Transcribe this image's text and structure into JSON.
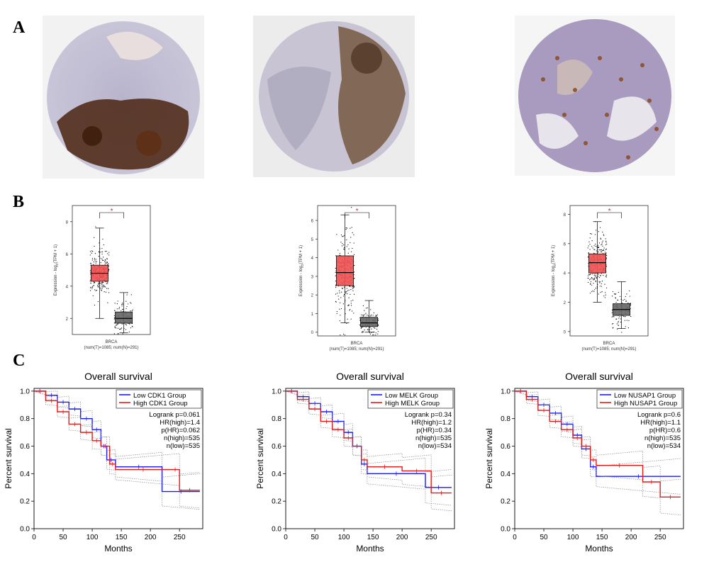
{
  "panel_labels": [
    "A",
    "B",
    "C"
  ],
  "ihc_images": [
    {
      "description_icon": "ihc-tissue-core-strong-stain",
      "stain_color": "#5a2e14",
      "counter_color": "#b7b3cf"
    },
    {
      "description_icon": "ihc-tissue-core-moderate-stain",
      "stain_color": "#6b4a2e",
      "counter_color": "#c6c2d6"
    },
    {
      "description_icon": "ihc-tissue-core-nuclear-stain",
      "stain_color": "#8a4a20",
      "counter_color": "#a99abf"
    }
  ],
  "boxplots": [
    {
      "ylabel_main": "Expression - log",
      "ylabel_sub": "2",
      "ylabel_end": "(TPM + 1)",
      "xlabel": "BRCA",
      "xnote": "(num(T)=1085; num(N)=291)",
      "sig": "*",
      "ylim": [
        1,
        9
      ],
      "ticks": [
        2,
        4,
        6,
        8
      ],
      "tumor": {
        "min": 2.0,
        "q1": 4.3,
        "median": 4.8,
        "q3": 5.3,
        "max": 7.6
      },
      "normal": {
        "min": 1.1,
        "q1": 1.7,
        "median": 2.0,
        "q3": 2.4,
        "max": 3.6
      }
    },
    {
      "ylabel_main": "Expression - log",
      "ylabel_sub": "2",
      "ylabel_end": "(TPM + 1)",
      "xlabel": "BRCA",
      "xnote": "(num(T)=1085; num(N)=291)",
      "sig": "*",
      "ylim": [
        -0.2,
        6.8
      ],
      "ticks": [
        0,
        1,
        2,
        3,
        4,
        5,
        6
      ],
      "tumor": {
        "min": 0.5,
        "q1": 2.5,
        "median": 3.2,
        "q3": 4.1,
        "max": 6.3
      },
      "normal": {
        "min": 0.0,
        "q1": 0.3,
        "median": 0.5,
        "q3": 0.8,
        "max": 1.7
      }
    },
    {
      "ylabel_main": "Expression - log",
      "ylabel_sub": "2",
      "ylabel_end": "(TPM + 1)",
      "xlabel": "BRCA",
      "xnote": "(num(T)=1085; num(N)=291)",
      "sig": "*",
      "ylim": [
        -0.3,
        8.6
      ],
      "ticks": [
        0,
        2,
        4,
        6,
        8
      ],
      "tumor": {
        "min": 2.0,
        "q1": 4.0,
        "median": 4.7,
        "q3": 5.3,
        "max": 7.5
      },
      "normal": {
        "min": 0.2,
        "q1": 1.1,
        "median": 1.5,
        "q3": 1.9,
        "max": 3.4
      }
    }
  ],
  "colors": {
    "tumor": "#f05050",
    "normal": "#666666",
    "low_group": "#1a1aff",
    "high_group": "#e61919",
    "ci": "#888888",
    "sig": "#e02020"
  },
  "chart_data": [
    {
      "type": "line",
      "title": "Overall survival",
      "xlabel": "Months",
      "ylabel": "Percent survival",
      "xlim": [
        0,
        290
      ],
      "ylim": [
        0,
        1.02
      ],
      "xticks": [
        0,
        50,
        100,
        150,
        200,
        250
      ],
      "yticks": [
        0.0,
        0.2,
        0.4,
        0.6,
        0.8,
        1.0
      ],
      "legend_position": "top-right",
      "series": [
        {
          "name": "Low CDK1 Group",
          "x": [
            0,
            20,
            40,
            60,
            80,
            100,
            115,
            125,
            140,
            220,
            285
          ],
          "y": [
            1.0,
            0.97,
            0.92,
            0.87,
            0.8,
            0.72,
            0.6,
            0.5,
            0.45,
            0.27,
            0.27
          ]
        },
        {
          "name": "High CDK1 Group",
          "x": [
            0,
            20,
            40,
            60,
            80,
            100,
            115,
            130,
            140,
            235,
            250,
            285
          ],
          "y": [
            1.0,
            0.93,
            0.85,
            0.76,
            0.7,
            0.64,
            0.6,
            0.47,
            0.43,
            0.43,
            0.28,
            0.28
          ]
        }
      ],
      "stats": [
        "Logrank p=0.061",
        "HR(high)=1.4",
        "p(HR)=0.062",
        "n(high)=535",
        "n(low)=535"
      ]
    },
    {
      "type": "line",
      "title": "Overall survival",
      "xlabel": "Months",
      "ylabel": "Percent survival",
      "xlim": [
        0,
        290
      ],
      "ylim": [
        0,
        1.02
      ],
      "xticks": [
        0,
        50,
        100,
        150,
        200,
        250
      ],
      "yticks": [
        0.0,
        0.2,
        0.4,
        0.6,
        0.8,
        1.0
      ],
      "legend_position": "top-right",
      "series": [
        {
          "name": "Low MELK Group",
          "x": [
            0,
            20,
            40,
            60,
            80,
            100,
            115,
            130,
            140,
            240,
            285
          ],
          "y": [
            1.0,
            0.96,
            0.91,
            0.85,
            0.78,
            0.7,
            0.6,
            0.47,
            0.4,
            0.3,
            0.3
          ]
        },
        {
          "name": "High MELK Group",
          "x": [
            0,
            20,
            40,
            60,
            80,
            100,
            115,
            130,
            140,
            200,
            250,
            285
          ],
          "y": [
            1.0,
            0.94,
            0.87,
            0.78,
            0.72,
            0.66,
            0.6,
            0.5,
            0.45,
            0.42,
            0.26,
            0.26
          ]
        }
      ],
      "stats": [
        "Logrank p=0.34",
        "HR(high)=1.2",
        "p(HR)=0.34",
        "n(high)=535",
        "n(low)=534"
      ]
    },
    {
      "type": "line",
      "title": "Overall survival",
      "xlabel": "Months",
      "ylabel": "Percent survival",
      "xlim": [
        0,
        290
      ],
      "ylim": [
        0,
        1.02
      ],
      "xticks": [
        0,
        50,
        100,
        150,
        200,
        250
      ],
      "yticks": [
        0.0,
        0.2,
        0.4,
        0.6,
        0.8,
        1.0
      ],
      "legend_position": "top-right",
      "series": [
        {
          "name": "Low NUSAP1 Group",
          "x": [
            0,
            20,
            40,
            60,
            80,
            100,
            115,
            130,
            140,
            285
          ],
          "y": [
            1.0,
            0.96,
            0.9,
            0.84,
            0.76,
            0.68,
            0.58,
            0.45,
            0.38,
            0.38
          ]
        },
        {
          "name": "High NUSAP1 Group",
          "x": [
            0,
            20,
            40,
            60,
            80,
            100,
            115,
            130,
            140,
            220,
            250,
            285
          ],
          "y": [
            1.0,
            0.94,
            0.86,
            0.78,
            0.72,
            0.66,
            0.6,
            0.5,
            0.46,
            0.34,
            0.23,
            0.23
          ]
        }
      ],
      "stats": [
        "Logrank p=0.6",
        "HR(high)=1.1",
        "p(HR)=0.6",
        "n(high)=535",
        "n(low)=534"
      ]
    }
  ]
}
